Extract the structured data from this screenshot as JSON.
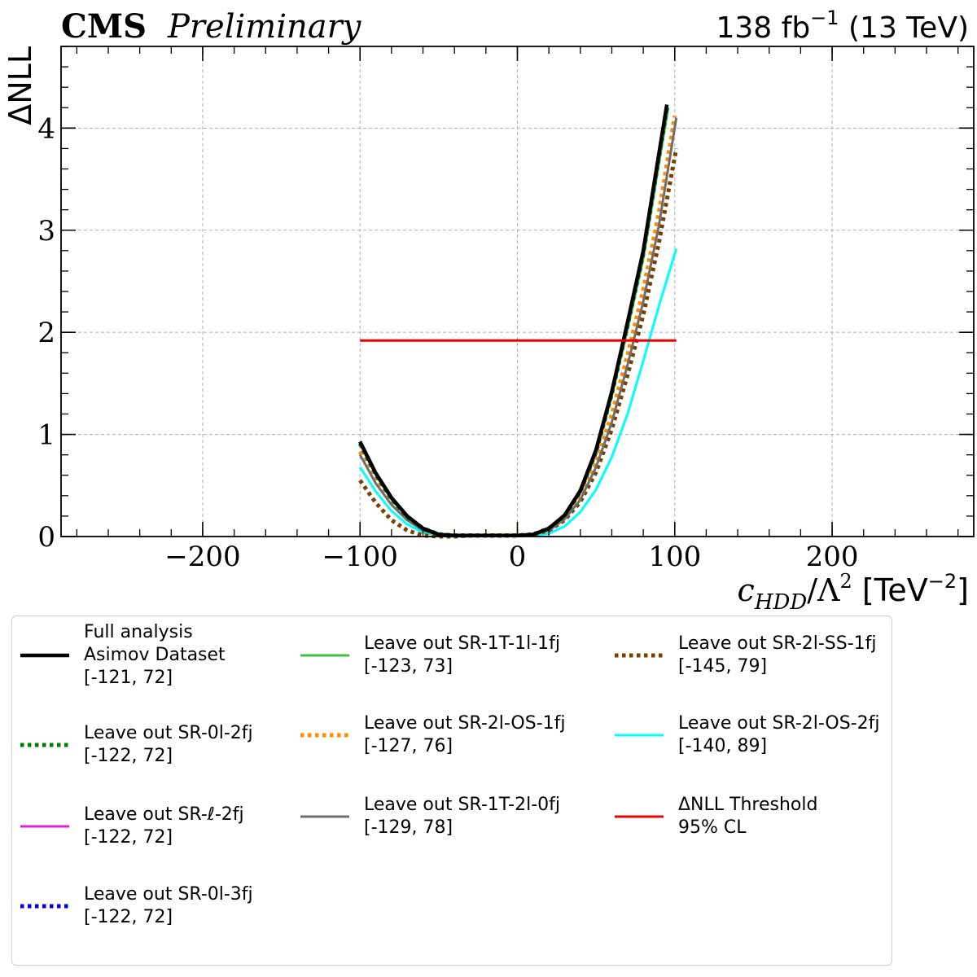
{
  "header": {
    "experiment": "CMS",
    "status": "Preliminary",
    "lumi_value": "138 fb",
    "lumi_exponent": "−1",
    "energy": " (13 TeV)"
  },
  "chart_data": {
    "type": "line",
    "xlabel_main": "c",
    "xlabel_sub": "HDD",
    "xlabel_den": "/Λ",
    "xlabel_den_exp": "2",
    "xlabel_unit": " [TeV",
    "xlabel_unit_exp": "−2",
    "xlabel_unit_close": "]",
    "ylabel": "ΔNLL",
    "xlim": [
      -290,
      290
    ],
    "ylim": [
      0,
      4.8
    ],
    "xticks": [
      -200,
      -100,
      0,
      100,
      200
    ],
    "xtick_labels": [
      "−200",
      "−100",
      "0",
      "100",
      "200"
    ],
    "yticks": [
      0,
      1,
      2,
      3,
      4
    ],
    "ytick_labels": [
      "0",
      "1",
      "2",
      "3",
      "4"
    ],
    "grid": true,
    "legend_position": "below",
    "series": [
      {
        "name": "Full analysis",
        "name2": "Asimov Dataset",
        "interval": "[-121, 72]",
        "color": "#000000",
        "style": "solid",
        "width": 4.5,
        "x": [
          -100,
          -90,
          -80,
          -70,
          -60,
          -50,
          -40,
          -30,
          -20,
          -10,
          0,
          10,
          20,
          30,
          40,
          50,
          60,
          70,
          80,
          95
        ],
        "y": [
          0.93,
          0.62,
          0.38,
          0.2,
          0.08,
          0.02,
          0.01,
          0.01,
          0.01,
          0.01,
          0.01,
          0.02,
          0.08,
          0.21,
          0.45,
          0.85,
          1.42,
          2.1,
          2.8,
          4.23
        ]
      },
      {
        "name": "Leave out SR-0l-2fj",
        "interval": "[-122, 72]",
        "color": "#008000",
        "style": "dotted",
        "width": 5,
        "x": [
          -100,
          -90,
          -80,
          -70,
          -60,
          -50,
          -40,
          -30,
          -20,
          -10,
          0,
          10,
          20,
          30,
          40,
          50,
          60,
          70,
          80,
          95
        ],
        "y": [
          0.91,
          0.61,
          0.37,
          0.19,
          0.08,
          0.02,
          0.01,
          0.01,
          0.01,
          0.01,
          0.01,
          0.02,
          0.08,
          0.2,
          0.44,
          0.83,
          1.4,
          2.07,
          2.77,
          4.2
        ]
      },
      {
        "name": "Leave out SR-ℓ-2fj",
        "interval": "[-122, 72]",
        "color": "#e020e0",
        "style": "solid",
        "width": 2.5,
        "x": [
          -100,
          -90,
          -80,
          -70,
          -60,
          -50,
          -40,
          -30,
          -20,
          -10,
          0,
          10,
          20,
          30,
          40,
          50,
          60,
          70,
          80,
          95
        ],
        "y": [
          0.91,
          0.61,
          0.37,
          0.19,
          0.08,
          0.02,
          0.01,
          0.01,
          0.01,
          0.01,
          0.01,
          0.02,
          0.08,
          0.2,
          0.44,
          0.83,
          1.4,
          2.07,
          2.77,
          4.2
        ]
      },
      {
        "name": "Leave out SR-0l-3fj",
        "interval": "[-122, 72]",
        "color": "#0000e0",
        "style": "dotted",
        "width": 5,
        "x": [
          -100,
          -90,
          -80,
          -70,
          -60,
          -50,
          -40,
          -30,
          -20,
          -10,
          0,
          10,
          20,
          30,
          40,
          50,
          60,
          70,
          80,
          95
        ],
        "y": [
          0.91,
          0.61,
          0.37,
          0.19,
          0.08,
          0.02,
          0.01,
          0.01,
          0.01,
          0.01,
          0.01,
          0.02,
          0.08,
          0.2,
          0.44,
          0.83,
          1.4,
          2.07,
          2.77,
          4.2
        ]
      },
      {
        "name": "Leave out SR-1T-1l-1fj",
        "interval": "[-123, 73]",
        "color": "#40c040",
        "style": "solid",
        "width": 2.5,
        "x": [
          -100,
          -90,
          -80,
          -70,
          -60,
          -50,
          -40,
          -30,
          -20,
          -10,
          0,
          10,
          20,
          30,
          40,
          50,
          60,
          70,
          80,
          96
        ],
        "y": [
          0.9,
          0.6,
          0.36,
          0.19,
          0.08,
          0.02,
          0.01,
          0.01,
          0.01,
          0.01,
          0.01,
          0.02,
          0.08,
          0.2,
          0.43,
          0.81,
          1.37,
          2.02,
          2.71,
          4.2
        ]
      },
      {
        "name": "Leave out SR-2l-OS-1fj",
        "interval": "[-127, 76]",
        "color": "#ff8c00",
        "style": "dotted",
        "width": 5,
        "x": [
          -100,
          -90,
          -80,
          -70,
          -60,
          -50,
          -40,
          -30,
          -20,
          -10,
          0,
          10,
          20,
          30,
          40,
          50,
          60,
          70,
          80,
          90,
          100
        ],
        "y": [
          0.83,
          0.55,
          0.33,
          0.17,
          0.07,
          0.02,
          0.01,
          0.01,
          0.01,
          0.01,
          0.01,
          0.02,
          0.07,
          0.18,
          0.38,
          0.72,
          1.2,
          1.78,
          2.42,
          3.18,
          4.12
        ]
      },
      {
        "name": "Leave out SR-1T-2l-0fj",
        "interval": "[-129, 78]",
        "color": "#6e6e6e",
        "style": "solid",
        "width": 3,
        "x": [
          -100,
          -90,
          -80,
          -70,
          -60,
          -50,
          -40,
          -30,
          -20,
          -10,
          0,
          10,
          20,
          30,
          40,
          50,
          60,
          70,
          80,
          90,
          101
        ],
        "y": [
          0.8,
          0.52,
          0.31,
          0.16,
          0.06,
          0.02,
          0.01,
          0.01,
          0.01,
          0.01,
          0.01,
          0.02,
          0.06,
          0.17,
          0.36,
          0.68,
          1.12,
          1.68,
          2.3,
          3.05,
          4.1
        ]
      },
      {
        "name": "Leave out SR-2l-SS-1fj",
        "interval": "[-145, 79]",
        "color": "#7b3f00",
        "style": "dotted",
        "width": 5,
        "x": [
          -100,
          -90,
          -80,
          -70,
          -60,
          -50,
          -40,
          -30,
          -20,
          -10,
          0,
          10,
          20,
          30,
          40,
          50,
          60,
          70,
          80,
          90,
          101
        ],
        "y": [
          0.55,
          0.33,
          0.16,
          0.06,
          0.01,
          0.0,
          0.0,
          0.01,
          0.01,
          0.01,
          0.01,
          0.02,
          0.06,
          0.16,
          0.34,
          0.63,
          1.05,
          1.58,
          2.17,
          2.88,
          3.8
        ]
      },
      {
        "name": "Leave out SR-2l-OS-2fj",
        "interval": "[-140, 89]",
        "color": "#00ffff",
        "style": "solid",
        "width": 3,
        "x": [
          -100,
          -90,
          -80,
          -70,
          -60,
          -50,
          -40,
          -30,
          -20,
          -10,
          0,
          10,
          20,
          30,
          40,
          50,
          60,
          70,
          80,
          90,
          101
        ],
        "y": [
          0.68,
          0.44,
          0.25,
          0.12,
          0.04,
          0.01,
          0.0,
          0.0,
          0.01,
          0.01,
          0.01,
          0.01,
          0.03,
          0.1,
          0.24,
          0.46,
          0.78,
          1.2,
          1.72,
          2.26,
          2.82
        ]
      },
      {
        "name": "ΔNLL Threshold",
        "name2": "95% CL",
        "color": "#ee0000",
        "style": "solid",
        "width": 3,
        "x": [
          -100,
          101
        ],
        "y": [
          1.92,
          1.92
        ]
      }
    ]
  }
}
